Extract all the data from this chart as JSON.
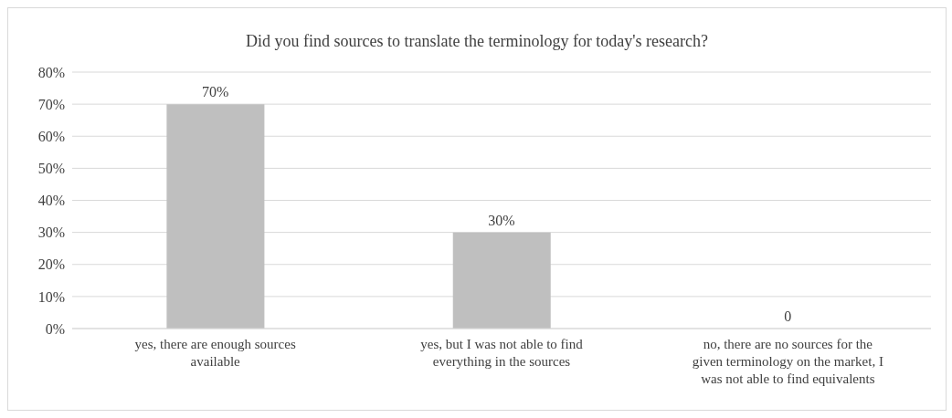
{
  "chart_data": {
    "type": "bar",
    "title": "Did you find sources to translate the terminology for today's research?",
    "categories": [
      "yes, there are enough sources available",
      "yes, but I was not able to find everything in the sources",
      "no, there are no sources for the given terminology on the market, I was not able to find equivalents"
    ],
    "values": [
      70,
      30,
      0
    ],
    "value_labels": [
      "70%",
      "30%",
      "0"
    ],
    "color": "#bfbfbf",
    "ylim": [
      0,
      80
    ],
    "yticks": [
      {
        "value": 0,
        "label": "0%"
      },
      {
        "value": 10,
        "label": "10%"
      },
      {
        "value": 20,
        "label": "20%"
      },
      {
        "value": 30,
        "label": "30%"
      },
      {
        "value": 40,
        "label": "40%"
      },
      {
        "value": 50,
        "label": "50%"
      },
      {
        "value": 60,
        "label": "60%"
      },
      {
        "value": 70,
        "label": "70%"
      },
      {
        "value": 80,
        "label": "80%"
      }
    ],
    "grid": "y"
  }
}
